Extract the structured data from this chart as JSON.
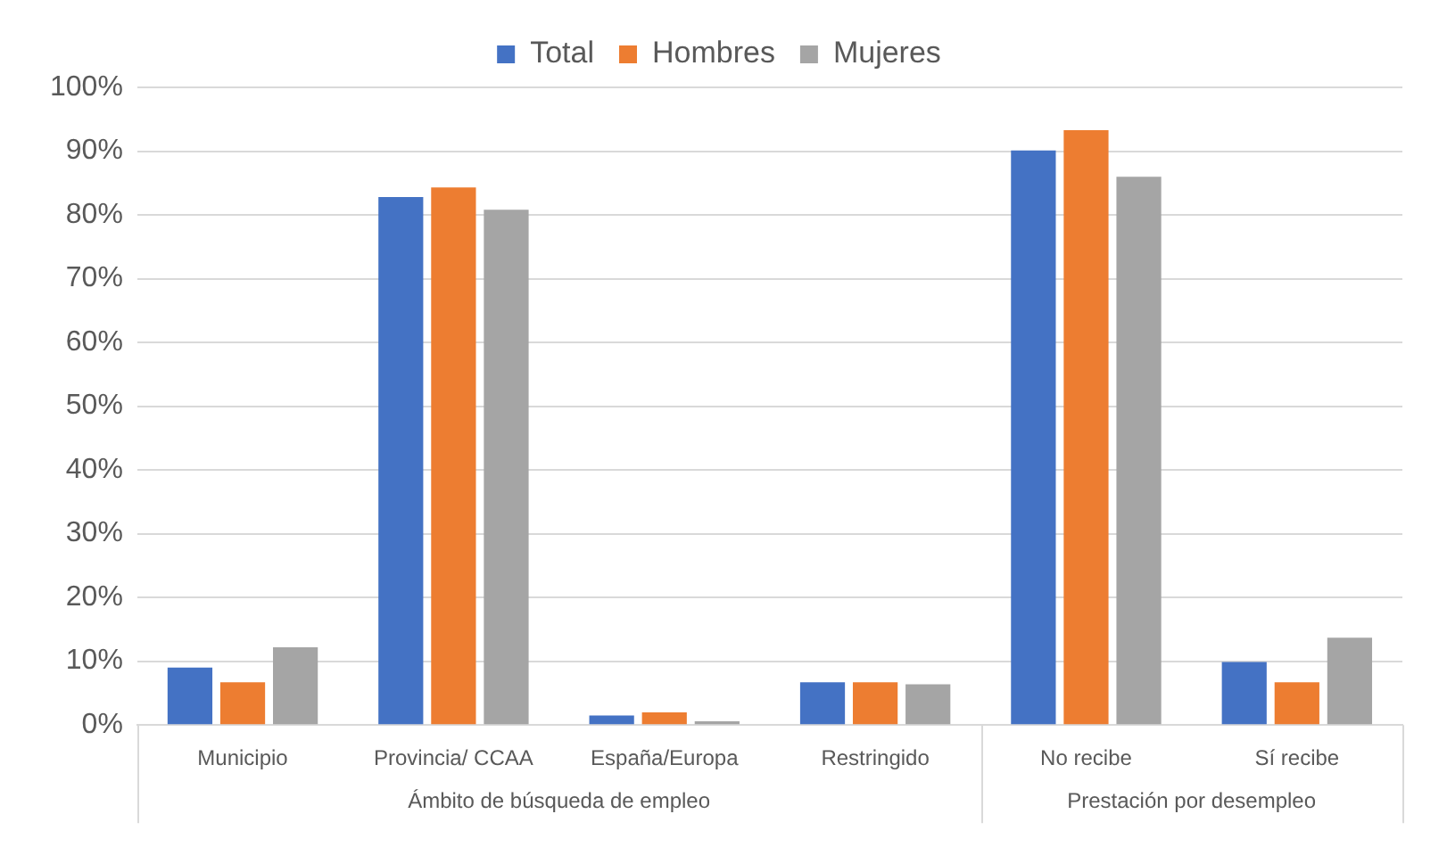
{
  "chart_data": {
    "type": "bar",
    "categories": [
      "Municipio",
      "Provincia/ CCAA",
      "España/Europa",
      "Restringido",
      "No recibe",
      "Sí recibe"
    ],
    "series": [
      {
        "name": "Total",
        "color": "#4472c4",
        "values": [
          9.0,
          82.8,
          1.5,
          6.7,
          90.1,
          9.9
        ]
      },
      {
        "name": "Hombres",
        "color": "#ed7d31",
        "values": [
          6.7,
          84.3,
          2.0,
          6.7,
          93.3,
          6.7
        ]
      },
      {
        "name": "Mujeres",
        "color": "#a5a5a5",
        "values": [
          12.2,
          80.8,
          0.6,
          6.4,
          86.0,
          13.7
        ]
      }
    ],
    "ylim": [
      0,
      100
    ],
    "yticks": [
      {
        "value": 0,
        "label": "0%"
      },
      {
        "value": 10,
        "label": "10%"
      },
      {
        "value": 20,
        "label": "20%"
      },
      {
        "value": 30,
        "label": "30%"
      },
      {
        "value": 40,
        "label": "40%"
      },
      {
        "value": 50,
        "label": "50%"
      },
      {
        "value": 60,
        "label": "60%"
      },
      {
        "value": 70,
        "label": "70%"
      },
      {
        "value": 80,
        "label": "80%"
      },
      {
        "value": 90,
        "label": "90%"
      },
      {
        "value": 100,
        "label": "100%"
      }
    ],
    "grid": "y",
    "legend": "top",
    "annotations": [
      "Ámbito de búsqueda de empleo",
      "Prestación por desempleo"
    ]
  }
}
